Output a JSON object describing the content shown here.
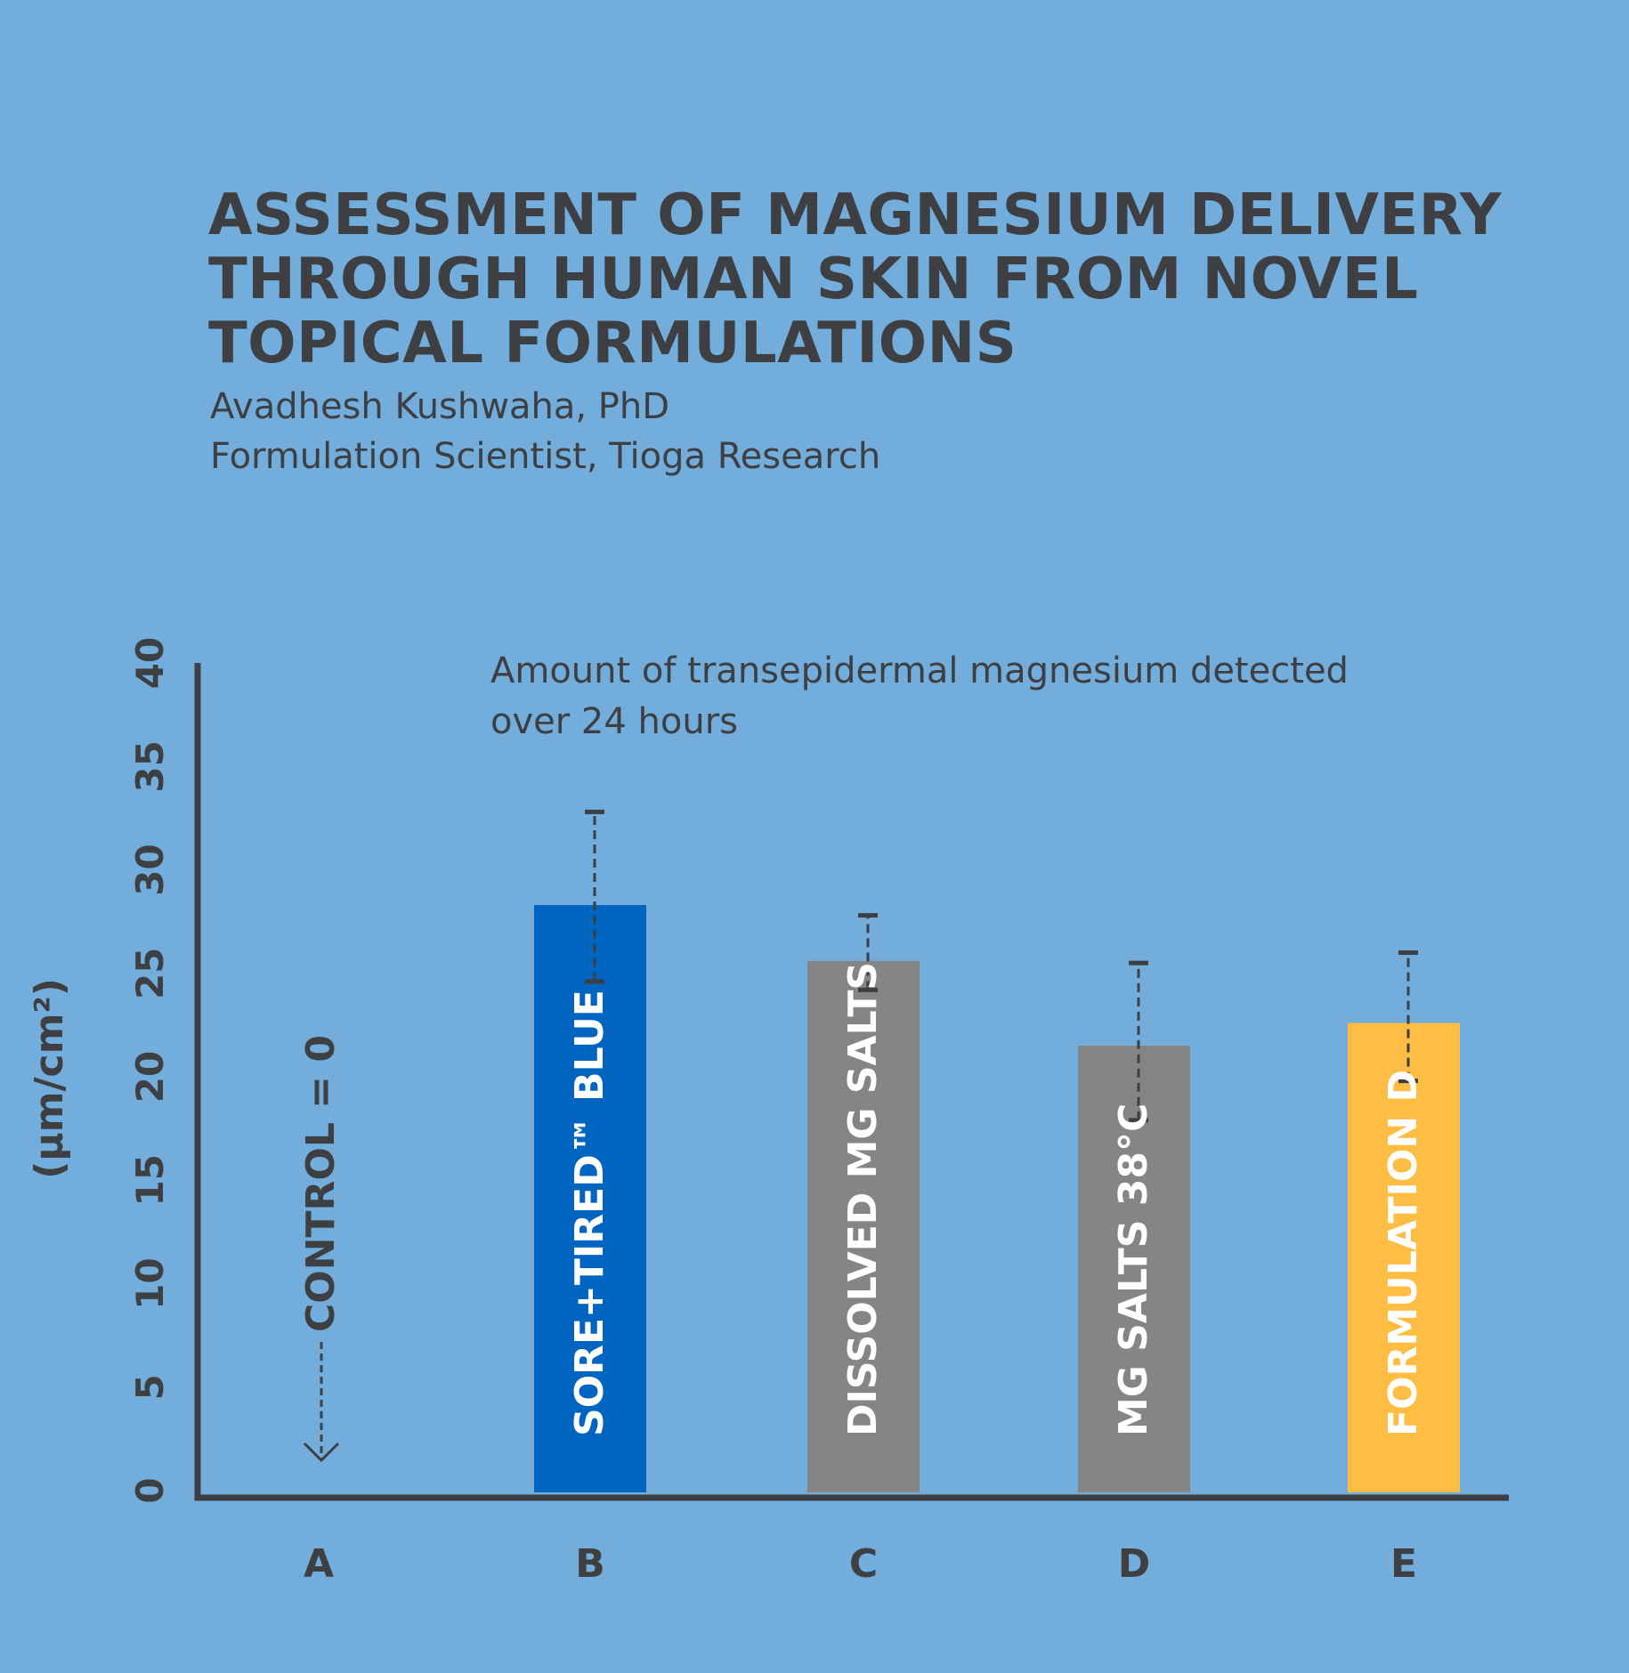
{
  "header": {
    "title_lines": [
      "ASSESSMENT OF MAGNESIUM DELIVERY",
      "THROUGH HUMAN SKIN FROM NOVEL",
      "TOPICAL FORMULATIONS"
    ],
    "author": "Avadhesh Kushwaha, PhD",
    "affiliation": "Formulation Scientist, Tioga Research"
  },
  "colors": {
    "background": "#72addb",
    "axis": "#3d3f42",
    "bar_blue": "#0064c1",
    "bar_gray": "#858585",
    "bar_yellow": "#ffbd44",
    "label_text": "#ffffff"
  },
  "chart_data": {
    "type": "bar",
    "title": "",
    "subtitle_lines": [
      "Amount of transepidermal magnesium detected",
      "over 24 hours"
    ],
    "ylabel": "(µm/cm²)",
    "xlabel": "",
    "ylim": [
      0,
      40
    ],
    "yticks": [
      "0",
      "5",
      "10",
      "15",
      "20",
      "25",
      "30",
      "35",
      "40"
    ],
    "categories": [
      "A",
      "B",
      "C",
      "D",
      "E"
    ],
    "values": [
      0,
      28.3,
      25.6,
      21.5,
      22.6
    ],
    "error_low": [
      null,
      24.6,
      24.2,
      17.9,
      19.8
    ],
    "error_high": [
      null,
      32.8,
      27.8,
      25.5,
      26.0
    ],
    "bar_labels": [
      "CONTROL = 0",
      "SORE+TIRED™ BLUE",
      "DISSOLVED MG SALTS",
      "MG SALTS 38°C",
      "FORMULATION D"
    ],
    "bar_colors": [
      null,
      "#0064c1",
      "#858585",
      "#858585",
      "#ffbd44"
    ],
    "grid": false,
    "legend": "none"
  }
}
